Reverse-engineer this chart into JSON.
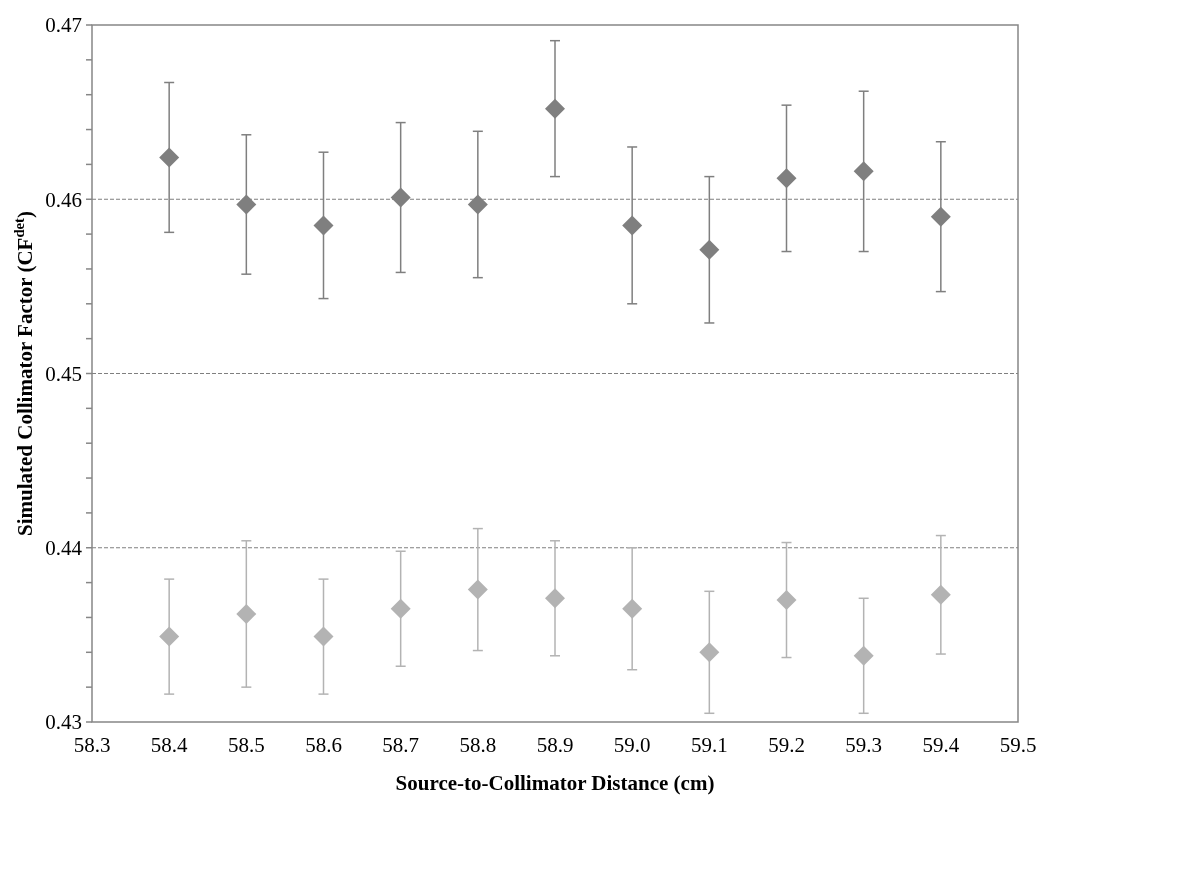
{
  "chart_data": {
    "type": "scatter",
    "xlabel": "Source-to-Collimator Distance (cm)",
    "ylabel": "Simulated Collimator Factor (CF$^{det}$)",
    "x": [
      58.4,
      58.5,
      58.6,
      58.7,
      58.8,
      58.9,
      59.0,
      59.1,
      59.2,
      59.3,
      59.4
    ],
    "series": [
      {
        "color": "#7f7f7f",
        "values": [
          0.4624,
          0.4597,
          0.4585,
          0.4601,
          0.4597,
          0.4652,
          0.4585,
          0.4571,
          0.4612,
          0.4616,
          0.459
        ],
        "errors": [
          0.0043,
          0.004,
          0.0042,
          0.0043,
          0.0042,
          0.0039,
          0.0045,
          0.0042,
          0.0042,
          0.0046,
          0.0043
        ]
      },
      {
        "color": "#b3b3b3",
        "values": [
          0.4349,
          0.4362,
          0.4349,
          0.4365,
          0.4376,
          0.4371,
          0.4365,
          0.434,
          0.437,
          0.4338,
          0.4373
        ],
        "errors": [
          0.0033,
          0.0042,
          0.0033,
          0.0033,
          0.0035,
          0.0033,
          0.0035,
          0.0035,
          0.0033,
          0.0033,
          0.0034
        ]
      }
    ],
    "xlim": [
      58.3,
      59.5
    ],
    "xticks": [
      58.3,
      58.4,
      58.5,
      58.6,
      58.7,
      58.8,
      58.9,
      {
        "value": 59,
        "label": "59.0"
      },
      59.1,
      59.2,
      59.3,
      59.4,
      59.5
    ],
    "ylim": [
      0.43,
      0.47
    ],
    "yticks": [
      0.43,
      {
        "value": 0.432,
        "label": null
      },
      {
        "value": 0.434,
        "label": null
      },
      {
        "value": 0.436,
        "label": null
      },
      {
        "value": 0.438,
        "label": null
      },
      0.44,
      {
        "value": 0.442,
        "label": null
      },
      {
        "value": 0.444,
        "label": null
      },
      {
        "value": 0.446,
        "label": null
      },
      {
        "value": 0.448,
        "label": null
      },
      0.45,
      {
        "value": 0.452,
        "label": null
      },
      {
        "value": 0.454,
        "label": null
      },
      {
        "value": 0.456,
        "label": null
      },
      {
        "value": 0.458,
        "label": null
      },
      0.46,
      {
        "value": 0.462,
        "label": null
      },
      {
        "value": 0.464,
        "label": null
      },
      {
        "value": 0.466,
        "label": null
      },
      {
        "value": 0.468,
        "label": null
      },
      0.47
    ],
    "grid": "y",
    "marker": "diamond"
  }
}
